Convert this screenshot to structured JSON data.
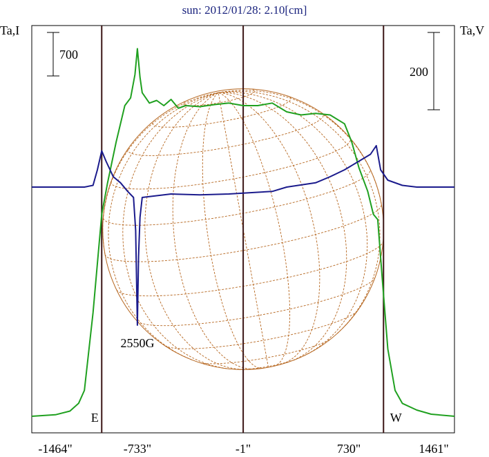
{
  "chart_data": {
    "type": "line",
    "title": "sun: 2012/01/28: 2.10[cm]",
    "left_axis_label": "Ta,I",
    "right_axis_label": "Ta,V",
    "left_scale_bar": {
      "label": "700",
      "value": 700
    },
    "right_scale_bar": {
      "label": "200",
      "value": 200
    },
    "xlim": [
      -1464,
      1461
    ],
    "x_ticks": [
      {
        "value": -1464,
        "label": "-1464\""
      },
      {
        "value": -733,
        "label": "-733\""
      },
      {
        "value": -1,
        "label": "-1\""
      },
      {
        "value": 730,
        "label": "730\""
      },
      {
        "value": 1461,
        "label": "1461\""
      }
    ],
    "vertical_markers": [
      {
        "x": -980,
        "label": "E"
      },
      {
        "x": -1,
        "label": ""
      },
      {
        "x": 970,
        "label": "W"
      }
    ],
    "annotations": [
      {
        "text": "2550G",
        "x": -733
      }
    ],
    "solar_disk": {
      "center_x": -1,
      "radius_arcsec": 972,
      "grid": true
    },
    "series": [
      {
        "name": "",
        "color": "#1fa01f",
        "axis": "left",
        "points": [
          [
            -1464,
            0.0
          ],
          [
            -1300,
            0.03
          ],
          [
            -1200,
            0.1
          ],
          [
            -1140,
            0.25
          ],
          [
            -1100,
            0.5
          ],
          [
            -1040,
            2.0
          ],
          [
            -980,
            3.9
          ],
          [
            -940,
            4.5
          ],
          [
            -880,
            5.3
          ],
          [
            -820,
            6.0
          ],
          [
            -780,
            6.15
          ],
          [
            -750,
            6.6
          ],
          [
            -733,
            7.1
          ],
          [
            -715,
            6.55
          ],
          [
            -700,
            6.25
          ],
          [
            -650,
            6.05
          ],
          [
            -600,
            6.1
          ],
          [
            -550,
            6.0
          ],
          [
            -500,
            6.12
          ],
          [
            -450,
            5.95
          ],
          [
            -400,
            6.0
          ],
          [
            -300,
            5.98
          ],
          [
            -200,
            6.02
          ],
          [
            -100,
            6.05
          ],
          [
            -1,
            6.0
          ],
          [
            100,
            6.0
          ],
          [
            200,
            6.05
          ],
          [
            300,
            5.88
          ],
          [
            400,
            5.82
          ],
          [
            500,
            5.85
          ],
          [
            600,
            5.82
          ],
          [
            700,
            5.65
          ],
          [
            750,
            5.3
          ],
          [
            800,
            4.8
          ],
          [
            860,
            4.35
          ],
          [
            900,
            3.9
          ],
          [
            930,
            3.8
          ],
          [
            960,
            2.7
          ],
          [
            1000,
            1.3
          ],
          [
            1050,
            0.5
          ],
          [
            1100,
            0.25
          ],
          [
            1200,
            0.12
          ],
          [
            1300,
            0.04
          ],
          [
            1461,
            0.0
          ]
        ]
      },
      {
        "name": "",
        "color": "#1a1a8c",
        "axis": "right",
        "points": [
          [
            -1464,
            0.0
          ],
          [
            -1100,
            0.0
          ],
          [
            -1040,
            0.02
          ],
          [
            -1010,
            0.2
          ],
          [
            -980,
            0.42
          ],
          [
            -950,
            0.3
          ],
          [
            -900,
            0.12
          ],
          [
            -850,
            0.05
          ],
          [
            -800,
            -0.05
          ],
          [
            -760,
            -0.12
          ],
          [
            -745,
            -0.5
          ],
          [
            -733,
            -1.6
          ],
          [
            -725,
            -0.8
          ],
          [
            -715,
            -0.35
          ],
          [
            -700,
            -0.12
          ],
          [
            -600,
            -0.1
          ],
          [
            -500,
            -0.08
          ],
          [
            -300,
            -0.09
          ],
          [
            -100,
            -0.08
          ],
          [
            -1,
            -0.07
          ],
          [
            100,
            -0.06
          ],
          [
            200,
            -0.05
          ],
          [
            300,
            0.0
          ],
          [
            500,
            0.05
          ],
          [
            600,
            0.12
          ],
          [
            700,
            0.2
          ],
          [
            800,
            0.3
          ],
          [
            880,
            0.38
          ],
          [
            920,
            0.48
          ],
          [
            950,
            0.2
          ],
          [
            1000,
            0.08
          ],
          [
            1100,
            0.02
          ],
          [
            1200,
            0.0
          ],
          [
            1461,
            0.0
          ]
        ]
      }
    ]
  }
}
